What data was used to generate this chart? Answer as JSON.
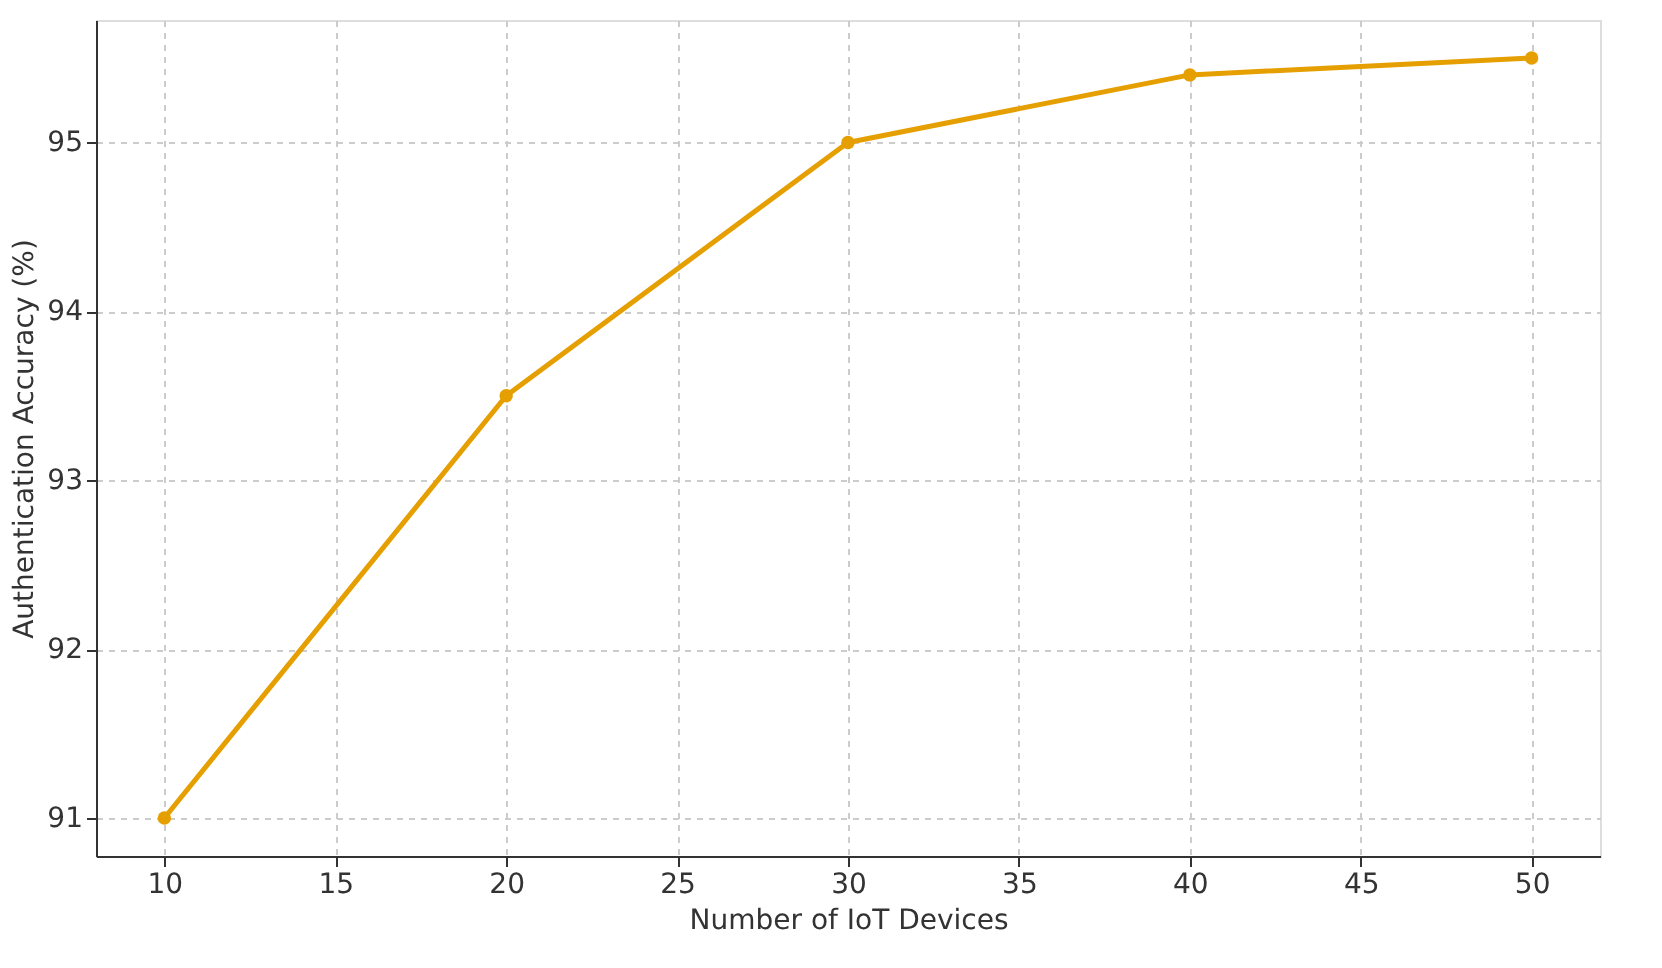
{
  "chart_data": {
    "type": "line",
    "xlabel": "Number of IoT Devices",
    "ylabel": "Authentication Accuracy (%)",
    "x": [
      10,
      20,
      30,
      40,
      50
    ],
    "series": [
      {
        "color": "#e69f00",
        "values": [
          91,
          93.5,
          95,
          95.4,
          95.5
        ]
      }
    ],
    "xlim": [
      8,
      52
    ],
    "ylim": [
      90.775,
      95.725
    ],
    "xticks": [
      10,
      15,
      20,
      25,
      30,
      35,
      40,
      45,
      50
    ],
    "yticks": [
      91,
      92,
      93,
      94,
      95
    ],
    "grid": true,
    "marker": "circle",
    "line_style": "solid"
  }
}
